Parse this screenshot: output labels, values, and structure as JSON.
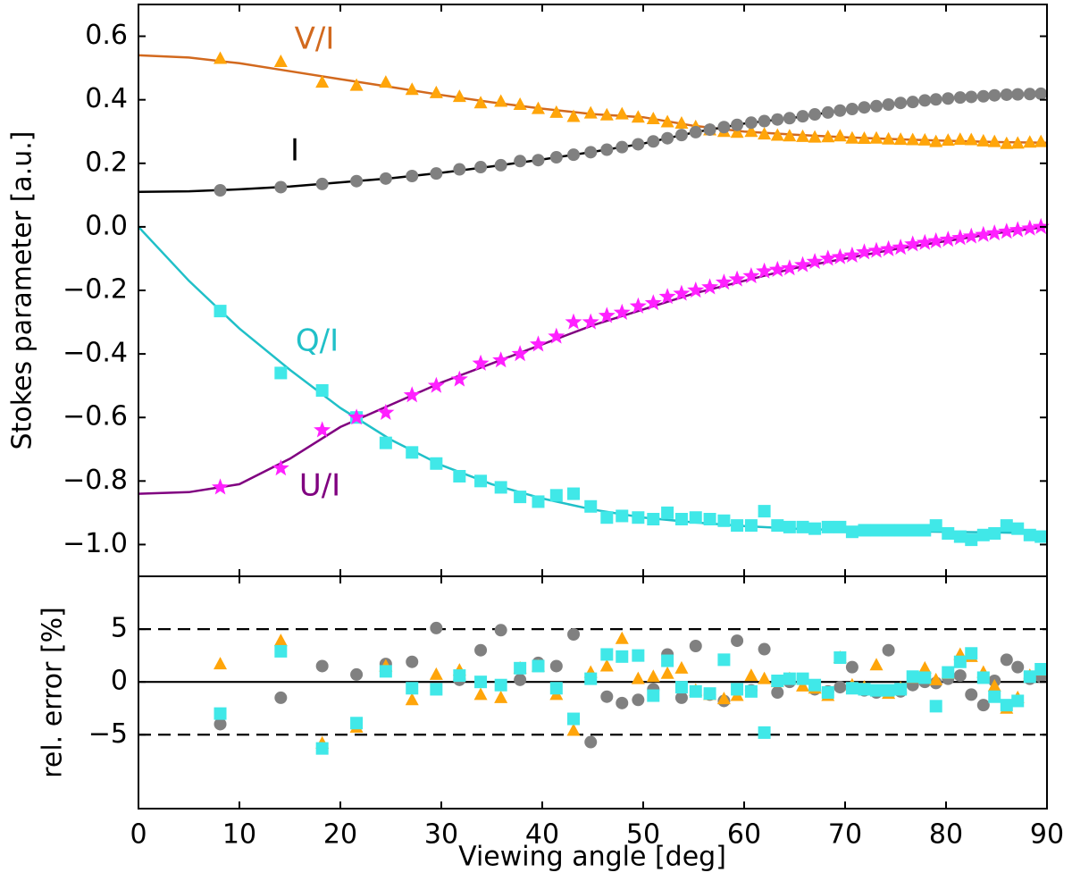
{
  "chart_data": [
    {
      "type": "scatter",
      "y_label": "Stokes parameter [a.u.]",
      "xlim": [
        0,
        90
      ],
      "xticks": [
        0,
        10,
        20,
        30,
        40,
        50,
        60,
        70,
        80,
        90
      ],
      "ylim": [
        -1.1,
        0.7
      ],
      "yticks": [
        {
          "value": -1,
          "label": "−1.0"
        },
        {
          "value": -0.8,
          "label": "−0.8"
        },
        {
          "value": -0.6,
          "label": "−0.6"
        },
        {
          "value": -0.4,
          "label": "−0.4"
        },
        {
          "value": -0.2,
          "label": "−0.2"
        },
        {
          "value": 0,
          "label": "0.0"
        },
        0.2,
        0.4,
        0.6
      ],
      "x": [
        8.1,
        14.1,
        18.2,
        21.6,
        24.5,
        27.1,
        29.5,
        31.8,
        33.9,
        35.9,
        37.8,
        39.6,
        41.4,
        43.1,
        44.8,
        46.4,
        47.9,
        49.5,
        51.0,
        52.4,
        53.8,
        55.2,
        56.6,
        58.0,
        59.3,
        60.7,
        62.0,
        63.3,
        64.5,
        65.8,
        67.0,
        68.3,
        69.5,
        70.7,
        71.9,
        73.1,
        74.3,
        75.5,
        76.7,
        77.9,
        79.0,
        80.2,
        81.4,
        82.5,
        83.7,
        84.8,
        86.0,
        87.1,
        88.3,
        89.4
      ],
      "fit_x": [
        0,
        5,
        10,
        15,
        20,
        25,
        30,
        35,
        40,
        45,
        50,
        55,
        60,
        65,
        70,
        75,
        80,
        85,
        90
      ],
      "series": [
        {
          "name": "V/I",
          "marker": "triangle",
          "color": "#ffa50a",
          "line_color": "#d2691e",
          "values": [
            0.53,
            0.52,
            0.455,
            0.445,
            0.455,
            0.432,
            0.422,
            0.41,
            0.39,
            0.395,
            0.385,
            0.372,
            0.36,
            0.347,
            0.358,
            0.352,
            0.355,
            0.345,
            0.34,
            0.33,
            0.326,
            0.315,
            0.305,
            0.3,
            0.297,
            0.3,
            0.292,
            0.288,
            0.286,
            0.284,
            0.282,
            0.283,
            0.286,
            0.279,
            0.278,
            0.279,
            0.276,
            0.275,
            0.274,
            0.273,
            0.268,
            0.272,
            0.275,
            0.274,
            0.27,
            0.268,
            0.262,
            0.263,
            0.266,
            0.268
          ],
          "fit": [
            0.54,
            0.533,
            0.515,
            0.49,
            0.465,
            0.44,
            0.415,
            0.392,
            0.372,
            0.355,
            0.345,
            0.318,
            0.3,
            0.29,
            0.282,
            0.276,
            0.271,
            0.267,
            0.265
          ]
        },
        {
          "name": "I",
          "marker": "circle",
          "color": "#808080",
          "line_color": "#000000",
          "values": [
            0.115,
            0.125,
            0.135,
            0.144,
            0.152,
            0.16,
            0.168,
            0.181,
            0.188,
            0.194,
            0.207,
            0.21,
            0.219,
            0.227,
            0.235,
            0.243,
            0.251,
            0.26,
            0.269,
            0.279,
            0.289,
            0.298,
            0.306,
            0.314,
            0.321,
            0.328,
            0.333,
            0.338,
            0.342,
            0.348,
            0.354,
            0.36,
            0.366,
            0.371,
            0.376,
            0.38,
            0.385,
            0.39,
            0.393,
            0.398,
            0.401,
            0.404,
            0.407,
            0.409,
            0.411,
            0.414,
            0.416,
            0.417,
            0.418,
            0.419
          ],
          "fit": [
            0.11,
            0.112,
            0.118,
            0.127,
            0.14,
            0.153,
            0.17,
            0.19,
            0.212,
            0.236,
            0.262,
            0.297,
            0.325,
            0.344,
            0.368,
            0.388,
            0.404,
            0.414,
            0.42
          ]
        },
        {
          "name": "Q/I",
          "marker": "square",
          "color": "#40e8e8",
          "line_color": "#20c0c8",
          "values": [
            -0.265,
            -0.46,
            -0.515,
            -0.6,
            -0.68,
            -0.71,
            -0.745,
            -0.785,
            -0.8,
            -0.82,
            -0.85,
            -0.865,
            -0.845,
            -0.84,
            -0.88,
            -0.915,
            -0.91,
            -0.915,
            -0.92,
            -0.9,
            -0.92,
            -0.915,
            -0.92,
            -0.925,
            -0.94,
            -0.94,
            -0.895,
            -0.94,
            -0.945,
            -0.945,
            -0.95,
            -0.945,
            -0.945,
            -0.96,
            -0.955,
            -0.955,
            -0.955,
            -0.955,
            -0.955,
            -0.955,
            -0.94,
            -0.965,
            -0.975,
            -0.985,
            -0.97,
            -0.965,
            -0.94,
            -0.95,
            -0.97,
            -0.975
          ],
          "fit": [
            0,
            -0.17,
            -0.32,
            -0.45,
            -0.57,
            -0.67,
            -0.75,
            -0.81,
            -0.855,
            -0.89,
            -0.915,
            -0.93,
            -0.942,
            -0.95,
            -0.955,
            -0.958,
            -0.96,
            -0.962,
            -0.965
          ]
        },
        {
          "name": "U/I",
          "marker": "star",
          "color": "#ff20ff",
          "line_color": "#800080",
          "values": [
            -0.82,
            -0.76,
            -0.64,
            -0.6,
            -0.585,
            -0.53,
            -0.5,
            -0.48,
            -0.43,
            -0.42,
            -0.4,
            -0.37,
            -0.345,
            -0.3,
            -0.3,
            -0.28,
            -0.27,
            -0.25,
            -0.24,
            -0.22,
            -0.21,
            -0.2,
            -0.19,
            -0.175,
            -0.165,
            -0.155,
            -0.14,
            -0.135,
            -0.13,
            -0.12,
            -0.11,
            -0.1,
            -0.095,
            -0.09,
            -0.08,
            -0.075,
            -0.07,
            -0.065,
            -0.055,
            -0.05,
            -0.045,
            -0.04,
            -0.035,
            -0.03,
            -0.025,
            -0.02,
            -0.015,
            -0.01,
            -0.005,
            0.0
          ],
          "fit": [
            -0.84,
            -0.835,
            -0.81,
            -0.73,
            -0.63,
            -0.56,
            -0.49,
            -0.43,
            -0.37,
            -0.31,
            -0.26,
            -0.21,
            -0.17,
            -0.13,
            -0.1,
            -0.07,
            -0.045,
            -0.02,
            0.0
          ]
        }
      ]
    },
    {
      "type": "scatter",
      "x_label": "Viewing angle [deg]",
      "y_label": "rel. error [%]",
      "xlim": [
        0,
        90
      ],
      "xticks": [
        0,
        10,
        20,
        30,
        40,
        50,
        60,
        70,
        80,
        90
      ],
      "ylim": [
        -12,
        10
      ],
      "yticks": [
        {
          "value": -5,
          "label": "−5"
        },
        0,
        5
      ],
      "hlines": [
        {
          "y": 5,
          "dashed": true
        },
        {
          "y": 0,
          "dashed": false
        },
        {
          "y": -5,
          "dashed": true
        }
      ],
      "x": [
        8.1,
        14.1,
        18.2,
        21.6,
        24.5,
        27.1,
        29.5,
        31.8,
        33.9,
        35.9,
        37.8,
        39.6,
        41.4,
        43.1,
        44.8,
        46.4,
        47.9,
        49.5,
        51.0,
        52.4,
        53.8,
        55.2,
        56.6,
        58.0,
        59.3,
        60.7,
        62.0,
        63.3,
        64.5,
        65.8,
        67.0,
        68.3,
        69.5,
        70.7,
        71.9,
        73.1,
        74.3,
        75.5,
        76.7,
        77.9,
        79.0,
        80.2,
        81.4,
        82.5,
        83.7,
        84.8,
        86.0,
        87.1,
        88.3,
        89.4
      ],
      "series": [
        {
          "marker": "circle",
          "color": "#808080",
          "values": [
            -4,
            -1.5,
            1.5,
            0.7,
            1.7,
            1.9,
            5.1,
            0.2,
            3.0,
            4.9,
            0.2,
            1.8,
            1.5,
            4.5,
            -5.7,
            -1.4,
            -2,
            -1.7,
            -0.7,
            2.6,
            -1.5,
            3.4,
            -1.2,
            -1.8,
            3.9,
            -0.8,
            3.1,
            -1,
            0,
            0.2,
            -0.7,
            -0.9,
            -0.5,
            1.4,
            -0.8,
            -1,
            3,
            -0.9,
            -0.3,
            0,
            -0.1,
            0.3,
            0.6,
            -1.2,
            -2.2,
            0.1,
            2.1,
            1.4,
            0.3,
            0.5
          ]
        },
        {
          "marker": "triangle",
          "color": "#ffa50a",
          "values": [
            1.7,
            3.9,
            -5.8,
            -4.3,
            1.5,
            -1.7,
            0.7,
            1.1,
            -1.2,
            -1.5,
            1.3,
            1.5,
            -1.2,
            -4.6,
            0.9,
            1.5,
            4.1,
            0.3,
            0.5,
            0.8,
            1.3,
            -0.8,
            -1.2,
            -1.6,
            -1.3,
            0.6,
            0.3,
            0,
            0.3,
            -0.4,
            -0.6,
            -1.3,
            2.3,
            -0.3,
            -0.5,
            1.6,
            -1.1,
            -0.6,
            0.4,
            1.3,
            0.2,
            0.8,
            2.6,
            2.4,
            0.9,
            -0.4,
            -2.5,
            -1.5,
            0.6,
            1.1
          ]
        },
        {
          "marker": "square",
          "color": "#40e8e8",
          "values": [
            -3,
            2.9,
            -6.3,
            -3.9,
            1,
            -0.6,
            -0.7,
            0.6,
            0,
            -0.3,
            1.3,
            1.5,
            -0.6,
            -3.5,
            0.3,
            2.6,
            2.4,
            2.5,
            -1.3,
            2,
            -0.5,
            -0.9,
            -1.1,
            2.1,
            -0.7,
            -0.9,
            -4.8,
            0.1,
            0.3,
            0.3,
            -0.3,
            -1,
            2.3,
            -0.6,
            -0.7,
            -0.8,
            -0.8,
            -0.7,
            0.5,
            0.4,
            -2.3,
            0.9,
            1.9,
            2.7,
            0.4,
            -1.4,
            -2.2,
            -1.8,
            0.5,
            1.2
          ]
        }
      ]
    }
  ]
}
